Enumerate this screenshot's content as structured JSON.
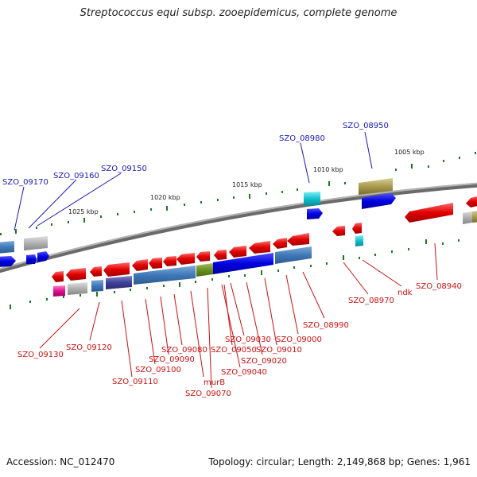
{
  "title": "Streptococcus equi subsp. zooepidemicus, complete genome",
  "accession": "Accession: NC_012470",
  "topology": "Topology: circular; Length: 2,149,868 bp; Genes: 1,961",
  "scale_labels": [
    "1025 kbp",
    "1020 kbp",
    "1015 kbp",
    "1010 kbp",
    "1005 kbp"
  ],
  "blue_labels": [
    "SZO_09170",
    "SZO_09160",
    "SZO_09150",
    "SZO_08980",
    "SZO_08950"
  ],
  "red_labels": [
    "SZO_09130",
    "SZO_09120",
    "SZO_09110",
    "SZO_09100",
    "SZO_09090",
    "SZO_09080",
    "murB",
    "SZO_09070",
    "SZO_09040",
    "SZO_09050",
    "SZO_09030",
    "SZO_09020",
    "SZO_09010",
    "SZO_09000",
    "SZO_08990",
    "SZO_08970",
    "ndk",
    "SZO_08940"
  ],
  "colors": {
    "forward_gene": "#1010e0",
    "reverse_gene": "#ee1111",
    "genome_line": "#808080",
    "tick": "#1a7a1a"
  }
}
